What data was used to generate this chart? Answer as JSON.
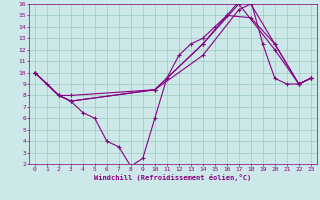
{
  "xlabel": "Windchill (Refroidissement éolien,°C)",
  "bg_color": "#cde8e8",
  "line_color": "#880088",
  "grid_color": "#99ccbb",
  "xlim": [
    -0.5,
    23.5
  ],
  "ylim": [
    2,
    16
  ],
  "yticks": [
    2,
    3,
    4,
    5,
    6,
    7,
    8,
    9,
    10,
    11,
    12,
    13,
    14,
    15,
    16
  ],
  "xticks": [
    0,
    1,
    2,
    3,
    4,
    5,
    6,
    7,
    8,
    9,
    10,
    11,
    12,
    13,
    14,
    15,
    16,
    17,
    18,
    19,
    20,
    21,
    22,
    23
  ],
  "line1_x": [
    0,
    1,
    2,
    3,
    4,
    5,
    6,
    7,
    8,
    9,
    10,
    11,
    12,
    13,
    14,
    15,
    16,
    17,
    18,
    19,
    20,
    21,
    22,
    23
  ],
  "line1_y": [
    10,
    9,
    8,
    7.5,
    6.5,
    6,
    4,
    3.5,
    1.8,
    2.5,
    6,
    9.5,
    11.5,
    12.5,
    13,
    14,
    15,
    16.2,
    16.3,
    12.5,
    9.5,
    9,
    9,
    9.5
  ],
  "line2_x": [
    0,
    2,
    3,
    10,
    14,
    17,
    18,
    20,
    22,
    23
  ],
  "line2_y": [
    10,
    8,
    8,
    8.5,
    11.5,
    15.5,
    16,
    12.5,
    9,
    9.5
  ],
  "line3_x": [
    0,
    2,
    3,
    10,
    14,
    16,
    18,
    20,
    22,
    23
  ],
  "line3_y": [
    10,
    8,
    7.5,
    8.5,
    12.5,
    15,
    14.8,
    12.5,
    9,
    9.5
  ],
  "line4_x": [
    0,
    2,
    3,
    10,
    14,
    17,
    20,
    22,
    23
  ],
  "line4_y": [
    10,
    8,
    7.5,
    8.5,
    12.5,
    16,
    12,
    9,
    9.5
  ]
}
